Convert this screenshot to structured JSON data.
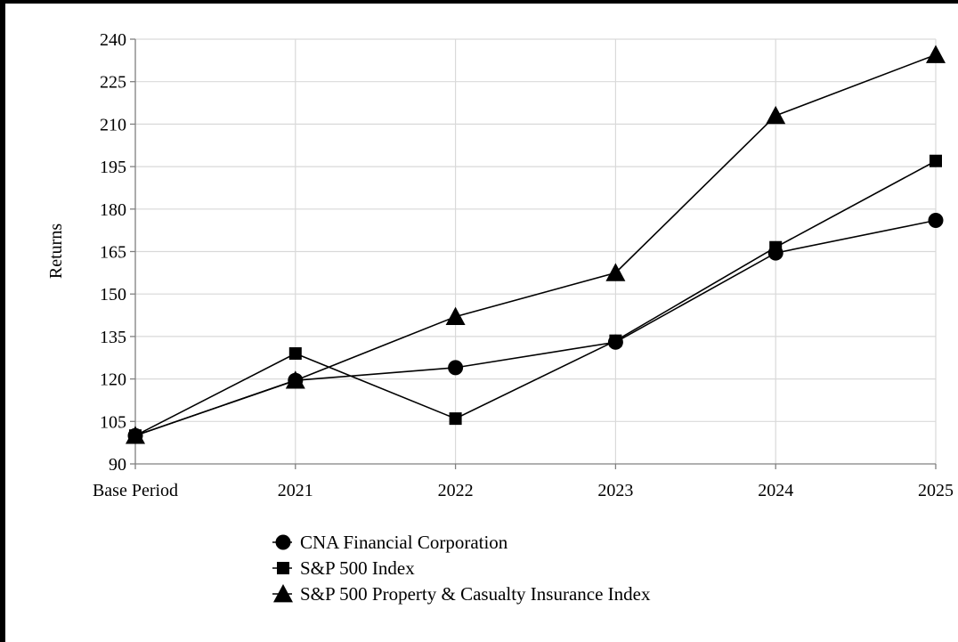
{
  "chart_data": {
    "type": "line",
    "title": "",
    "xlabel": "",
    "ylabel": "Returns",
    "categories": [
      "Base Period",
      "2021",
      "2022",
      "2023",
      "2024",
      "2025"
    ],
    "ylim": [
      90,
      240
    ],
    "yticks": [
      90,
      105,
      120,
      135,
      150,
      165,
      180,
      195,
      210,
      225,
      240
    ],
    "grid": true,
    "legend_position": "bottom",
    "series": [
      {
        "name": "CNA Financial Corporation",
        "marker": "circle",
        "values": [
          100,
          119.5,
          124,
          133,
          164.5,
          176
        ]
      },
      {
        "name": "S&P 500 Index",
        "marker": "square",
        "values": [
          100,
          129,
          106,
          133.5,
          166.5,
          197
        ]
      },
      {
        "name": "S&P 500 Property & Casualty Insurance Index",
        "marker": "triangle",
        "values": [
          100,
          119.5,
          142,
          157.5,
          213,
          234.5
        ]
      }
    ]
  }
}
